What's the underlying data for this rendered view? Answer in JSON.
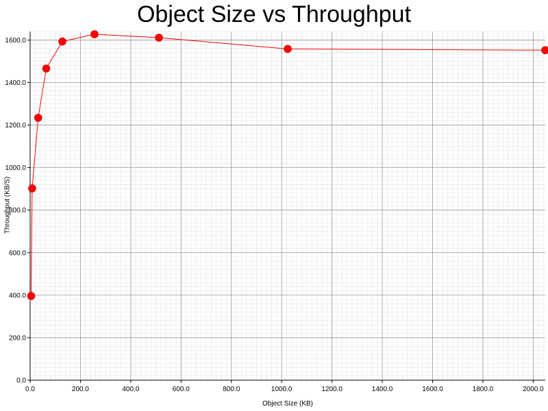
{
  "chart_data": {
    "type": "line",
    "title": "Object Size vs Throughput",
    "xlabel": "Object Size (KB)",
    "ylabel": "Throughput (KB/S)",
    "xlim": [
      0,
      2048
    ],
    "ylim": [
      0,
      1640
    ],
    "x_ticks": [
      "0.0",
      "200.0",
      "400.0",
      "600.0",
      "800.0",
      "1000.0",
      "1200.0",
      "1400.0",
      "1600.0",
      "1800.0",
      "2000.0"
    ],
    "y_ticks": [
      "0.0",
      "200.0",
      "400.0",
      "600.0",
      "800.0",
      "1000.0",
      "1200.0",
      "1400.0",
      "1600.0"
    ],
    "grid": true,
    "series": [
      {
        "color": "#ff0000",
        "x": [
          4,
          8,
          32,
          64,
          128,
          256,
          512,
          1024,
          2048
        ],
        "y": [
          396,
          902,
          1234,
          1466,
          1593,
          1627,
          1611,
          1558,
          1552
        ]
      }
    ]
  }
}
